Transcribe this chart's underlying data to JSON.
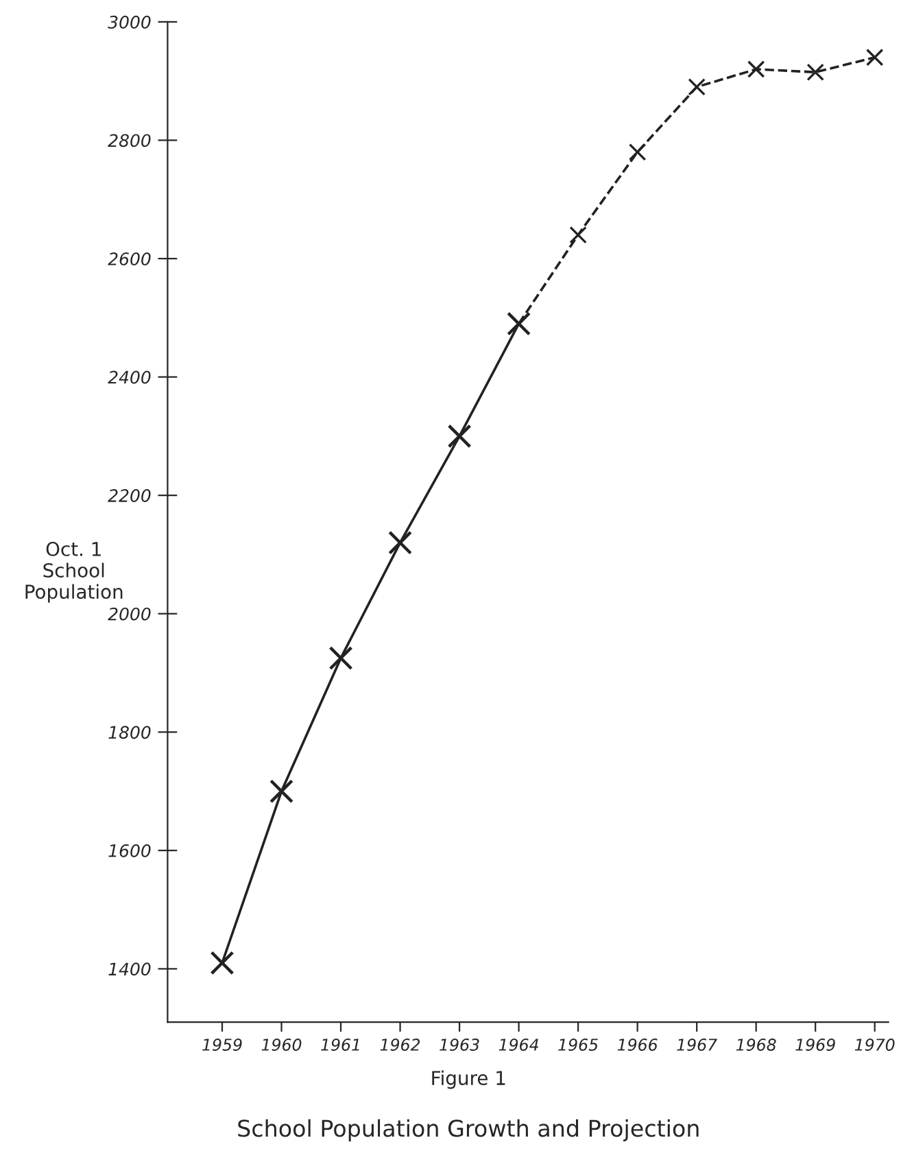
{
  "chart_data": {
    "type": "line",
    "title": "School Population Growth and Projection",
    "ylabel": "Oct. 1\nSchool\nPopulation",
    "annotations": [
      "Figure 1"
    ],
    "categories": [
      "1959",
      "1960",
      "1961",
      "1962",
      "1963",
      "1964",
      "1965",
      "1966",
      "1967",
      "1968",
      "1969",
      "1970"
    ],
    "series": [
      {
        "color": "#222222",
        "line_style": "solid",
        "values": [
          1410,
          1700,
          1925,
          2120,
          2300,
          2490,
          null,
          null,
          null,
          null,
          null,
          null
        ]
      },
      {
        "color": "#222222",
        "line_style": "dashed",
        "values": [
          null,
          null,
          null,
          null,
          null,
          2490,
          2640,
          2780,
          2890,
          2920,
          2915,
          2940
        ]
      }
    ],
    "ylim": [
      1310,
      3000
    ],
    "yticks": [
      1400,
      1600,
      1800,
      2000,
      2200,
      2400,
      2600,
      2800,
      3000
    ],
    "marker": "cross",
    "grid": false,
    "legend": false
  }
}
